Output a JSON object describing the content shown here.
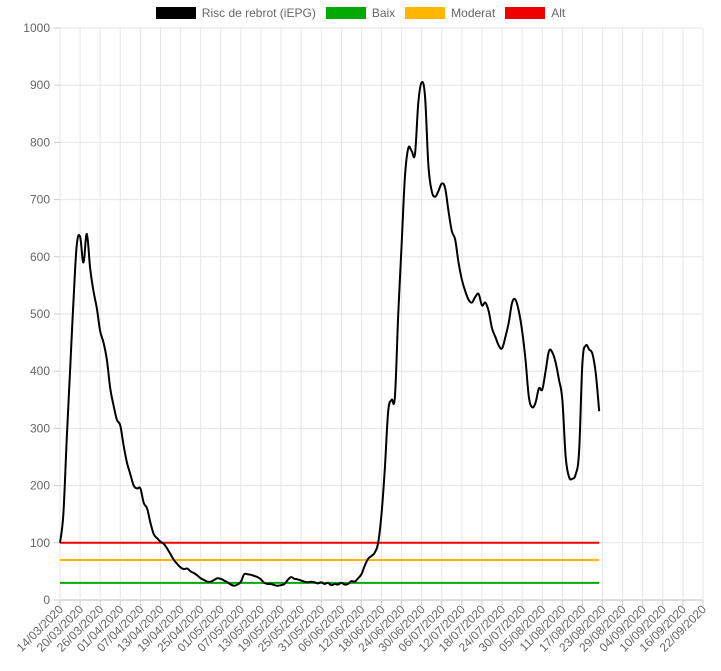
{
  "chart_data": {
    "type": "line",
    "y_ticks": [
      0,
      100,
      200,
      300,
      400,
      500,
      600,
      700,
      800,
      900,
      1000
    ],
    "ylim": [
      0,
      1000
    ],
    "grid": true,
    "legend_position": "top",
    "x_tick_labels": [
      "14/03/2020",
      "20/03/2020",
      "26/03/2020",
      "01/04/2020",
      "07/04/2020",
      "13/04/2020",
      "19/04/2020",
      "25/04/2020",
      "01/05/2020",
      "07/05/2020",
      "13/05/2020",
      "19/05/2020",
      "25/05/2020",
      "31/05/2020",
      "06/06/2020",
      "12/06/2020",
      "18/06/2020",
      "24/06/2020",
      "30/06/2020",
      "06/07/2020",
      "12/07/2020",
      "18/07/2020",
      "24/07/2020",
      "30/07/2020",
      "05/08/2020",
      "11/08/2020",
      "17/08/2020",
      "23/08/2020",
      "29/08/2020",
      "04/09/2020",
      "10/09/2020",
      "16/09/2020",
      "22/09/2020"
    ],
    "series": [
      {
        "name": "Risc de rebrot (iEPG)",
        "color": "#000000",
        "points": [
          [
            "14/03/2020",
            100
          ],
          [
            "15/03/2020",
            150
          ],
          [
            "16/03/2020",
            280
          ],
          [
            "17/03/2020",
            400
          ],
          [
            "18/03/2020",
            520
          ],
          [
            "19/03/2020",
            620
          ],
          [
            "20/03/2020",
            635
          ],
          [
            "21/03/2020",
            590
          ],
          [
            "22/03/2020",
            640
          ],
          [
            "23/03/2020",
            580
          ],
          [
            "24/03/2020",
            540
          ],
          [
            "25/03/2020",
            510
          ],
          [
            "26/03/2020",
            470
          ],
          [
            "27/03/2020",
            450
          ],
          [
            "28/03/2020",
            420
          ],
          [
            "29/03/2020",
            370
          ],
          [
            "30/03/2020",
            340
          ],
          [
            "31/03/2020",
            315
          ],
          [
            "01/04/2020",
            305
          ],
          [
            "02/04/2020",
            270
          ],
          [
            "03/04/2020",
            240
          ],
          [
            "04/04/2020",
            220
          ],
          [
            "05/04/2020",
            200
          ],
          [
            "06/04/2020",
            195
          ],
          [
            "07/04/2020",
            195
          ],
          [
            "08/04/2020",
            170
          ],
          [
            "09/04/2020",
            160
          ],
          [
            "10/04/2020",
            135
          ],
          [
            "11/04/2020",
            115
          ],
          [
            "12/04/2020",
            108
          ],
          [
            "13/04/2020",
            102
          ],
          [
            "14/04/2020",
            98
          ],
          [
            "15/04/2020",
            90
          ],
          [
            "16/04/2020",
            80
          ],
          [
            "17/04/2020",
            70
          ],
          [
            "18/04/2020",
            63
          ],
          [
            "19/04/2020",
            57
          ],
          [
            "20/04/2020",
            54
          ],
          [
            "21/04/2020",
            55
          ],
          [
            "22/04/2020",
            50
          ],
          [
            "23/04/2020",
            47
          ],
          [
            "24/04/2020",
            43
          ],
          [
            "25/04/2020",
            38
          ],
          [
            "26/04/2020",
            35
          ],
          [
            "27/04/2020",
            32
          ],
          [
            "28/04/2020",
            32
          ],
          [
            "29/04/2020",
            35
          ],
          [
            "30/04/2020",
            38
          ],
          [
            "01/05/2020",
            37
          ],
          [
            "02/05/2020",
            34
          ],
          [
            "03/05/2020",
            31
          ],
          [
            "04/05/2020",
            27
          ],
          [
            "05/05/2020",
            25
          ],
          [
            "06/05/2020",
            27
          ],
          [
            "07/05/2020",
            32
          ],
          [
            "08/05/2020",
            45
          ],
          [
            "09/05/2020",
            45
          ],
          [
            "10/05/2020",
            44
          ],
          [
            "11/05/2020",
            42
          ],
          [
            "12/05/2020",
            40
          ],
          [
            "13/05/2020",
            36
          ],
          [
            "14/05/2020",
            30
          ],
          [
            "15/05/2020",
            28
          ],
          [
            "16/05/2020",
            28
          ],
          [
            "17/05/2020",
            26
          ],
          [
            "18/05/2020",
            25
          ],
          [
            "19/05/2020",
            26
          ],
          [
            "20/05/2020",
            28
          ],
          [
            "21/05/2020",
            35
          ],
          [
            "22/05/2020",
            40
          ],
          [
            "23/05/2020",
            37
          ],
          [
            "24/05/2020",
            36
          ],
          [
            "25/05/2020",
            34
          ],
          [
            "26/05/2020",
            32
          ],
          [
            "27/05/2020",
            31
          ],
          [
            "28/05/2020",
            32
          ],
          [
            "29/05/2020",
            31
          ],
          [
            "30/05/2020",
            29
          ],
          [
            "31/05/2020",
            31
          ],
          [
            "01/06/2020",
            28
          ],
          [
            "02/06/2020",
            30
          ],
          [
            "03/06/2020",
            26
          ],
          [
            "04/06/2020",
            28
          ],
          [
            "05/06/2020",
            27
          ],
          [
            "06/06/2020",
            30
          ],
          [
            "07/06/2020",
            27
          ],
          [
            "08/06/2020",
            28
          ],
          [
            "09/06/2020",
            33
          ],
          [
            "10/06/2020",
            32
          ],
          [
            "11/06/2020",
            38
          ],
          [
            "12/06/2020",
            45
          ],
          [
            "13/06/2020",
            60
          ],
          [
            "14/06/2020",
            72
          ],
          [
            "15/06/2020",
            77
          ],
          [
            "16/06/2020",
            83
          ],
          [
            "17/06/2020",
            100
          ],
          [
            "18/06/2020",
            150
          ],
          [
            "19/06/2020",
            230
          ],
          [
            "20/06/2020",
            330
          ],
          [
            "21/06/2020",
            350
          ],
          [
            "22/06/2020",
            355
          ],
          [
            "23/06/2020",
            500
          ],
          [
            "24/06/2020",
            620
          ],
          [
            "25/06/2020",
            740
          ],
          [
            "26/06/2020",
            790
          ],
          [
            "27/06/2020",
            785
          ],
          [
            "28/06/2020",
            780
          ],
          [
            "29/06/2020",
            870
          ],
          [
            "30/06/2020",
            905
          ],
          [
            "01/07/2020",
            880
          ],
          [
            "02/07/2020",
            760
          ],
          [
            "03/07/2020",
            715
          ],
          [
            "04/07/2020",
            705
          ],
          [
            "05/07/2020",
            715
          ],
          [
            "06/07/2020",
            728
          ],
          [
            "07/07/2020",
            720
          ],
          [
            "08/07/2020",
            680
          ],
          [
            "09/07/2020",
            645
          ],
          [
            "10/07/2020",
            630
          ],
          [
            "11/07/2020",
            590
          ],
          [
            "12/07/2020",
            560
          ],
          [
            "13/07/2020",
            540
          ],
          [
            "14/07/2020",
            525
          ],
          [
            "15/07/2020",
            520
          ],
          [
            "16/07/2020",
            530
          ],
          [
            "17/07/2020",
            535
          ],
          [
            "18/07/2020",
            515
          ],
          [
            "19/07/2020",
            520
          ],
          [
            "20/07/2020",
            505
          ],
          [
            "21/07/2020",
            475
          ],
          [
            "22/07/2020",
            460
          ],
          [
            "23/07/2020",
            445
          ],
          [
            "24/07/2020",
            440
          ],
          [
            "25/07/2020",
            460
          ],
          [
            "26/07/2020",
            485
          ],
          [
            "27/07/2020",
            520
          ],
          [
            "28/07/2020",
            525
          ],
          [
            "29/07/2020",
            505
          ],
          [
            "30/07/2020",
            470
          ],
          [
            "31/07/2020",
            420
          ],
          [
            "01/08/2020",
            355
          ],
          [
            "02/08/2020",
            337
          ],
          [
            "03/08/2020",
            345
          ],
          [
            "04/08/2020",
            370
          ],
          [
            "05/08/2020",
            368
          ],
          [
            "06/08/2020",
            400
          ],
          [
            "07/08/2020",
            435
          ],
          [
            "08/08/2020",
            433
          ],
          [
            "09/08/2020",
            415
          ],
          [
            "10/08/2020",
            385
          ],
          [
            "11/08/2020",
            350
          ],
          [
            "12/08/2020",
            250
          ],
          [
            "13/08/2020",
            215
          ],
          [
            "14/08/2020",
            212
          ],
          [
            "15/08/2020",
            220
          ],
          [
            "16/08/2020",
            260
          ],
          [
            "17/08/2020",
            415
          ],
          [
            "18/08/2020",
            445
          ],
          [
            "19/08/2020",
            438
          ],
          [
            "20/08/2020",
            430
          ],
          [
            "21/08/2020",
            395
          ],
          [
            "22/08/2020",
            330
          ]
        ]
      },
      {
        "name": "Baix",
        "color": "#00aa00",
        "points": [
          [
            "14/03/2020",
            30
          ],
          [
            "22/08/2020",
            30
          ]
        ]
      },
      {
        "name": "Moderat",
        "color": "#ffb600",
        "points": [
          [
            "14/03/2020",
            70
          ],
          [
            "22/08/2020",
            70
          ]
        ]
      },
      {
        "name": "Alt",
        "color": "#ee0000",
        "points": [
          [
            "14/03/2020",
            100
          ],
          [
            "22/08/2020",
            100
          ]
        ]
      }
    ]
  }
}
